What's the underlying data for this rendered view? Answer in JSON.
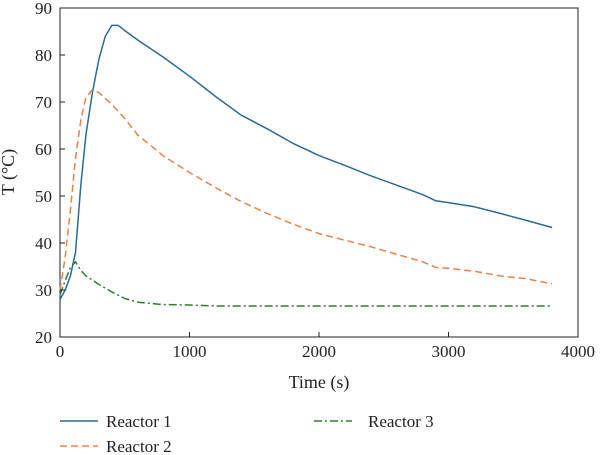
{
  "chart_data": {
    "type": "line",
    "title": "",
    "xlabel": "Time (s)",
    "ylabel": "T (°C)",
    "xlim": [
      0,
      4000
    ],
    "ylim": [
      20,
      90
    ],
    "xticks": [
      0,
      1000,
      2000,
      3000,
      4000
    ],
    "yticks": [
      20,
      30,
      40,
      50,
      60,
      70,
      80,
      90
    ],
    "grid": false,
    "legend_position": "below",
    "series": [
      {
        "name": "Reactor 1",
        "color": "#2a6a94",
        "style": "solid",
        "points": [
          [
            0,
            28
          ],
          [
            40,
            30
          ],
          [
            80,
            33
          ],
          [
            120,
            38
          ],
          [
            160,
            52
          ],
          [
            200,
            63
          ],
          [
            250,
            72
          ],
          [
            300,
            79
          ],
          [
            350,
            84
          ],
          [
            400,
            86.3
          ],
          [
            450,
            86.3
          ],
          [
            500,
            85.2
          ],
          [
            600,
            83.2
          ],
          [
            800,
            79.5
          ],
          [
            1000,
            75.5
          ],
          [
            1200,
            71.2
          ],
          [
            1400,
            67.2
          ],
          [
            1600,
            64.3
          ],
          [
            1800,
            61.2
          ],
          [
            2000,
            58.6
          ],
          [
            2200,
            56.5
          ],
          [
            2400,
            54.3
          ],
          [
            2600,
            52.3
          ],
          [
            2800,
            50.3
          ],
          [
            2900,
            49
          ],
          [
            3000,
            48.6
          ],
          [
            3200,
            47.7
          ],
          [
            3400,
            46.3
          ],
          [
            3600,
            44.8
          ],
          [
            3800,
            43.3
          ]
        ]
      },
      {
        "name": "Reactor 2",
        "color": "#e8834a",
        "style": "dashed",
        "points": [
          [
            0,
            30
          ],
          [
            40,
            37
          ],
          [
            80,
            47
          ],
          [
            120,
            58
          ],
          [
            160,
            66
          ],
          [
            200,
            71
          ],
          [
            250,
            72.6
          ],
          [
            300,
            72
          ],
          [
            400,
            69.5
          ],
          [
            500,
            66.5
          ],
          [
            600,
            63
          ],
          [
            800,
            58.5
          ],
          [
            1000,
            55
          ],
          [
            1200,
            51.8
          ],
          [
            1400,
            48.8
          ],
          [
            1600,
            46.3
          ],
          [
            1800,
            44
          ],
          [
            2000,
            42
          ],
          [
            2200,
            40.6
          ],
          [
            2400,
            39.2
          ],
          [
            2600,
            37.6
          ],
          [
            2800,
            36
          ],
          [
            2900,
            34.8
          ],
          [
            3000,
            34.6
          ],
          [
            3200,
            34
          ],
          [
            3400,
            33
          ],
          [
            3600,
            32.4
          ],
          [
            3800,
            31.3
          ]
        ]
      },
      {
        "name": "Reactor 3",
        "color": "#2e7d32",
        "style": "dashdot",
        "points": [
          [
            0,
            29
          ],
          [
            40,
            32
          ],
          [
            80,
            34.8
          ],
          [
            120,
            36
          ],
          [
            160,
            34.2
          ],
          [
            200,
            33
          ],
          [
            300,
            31.2
          ],
          [
            400,
            29.6
          ],
          [
            500,
            28.2
          ],
          [
            600,
            27.4
          ],
          [
            800,
            26.9
          ],
          [
            1000,
            26.8
          ],
          [
            1200,
            26.6
          ],
          [
            1500,
            26.6
          ],
          [
            2000,
            26.6
          ],
          [
            2500,
            26.6
          ],
          [
            3000,
            26.6
          ],
          [
            3500,
            26.6
          ],
          [
            3800,
            26.6
          ]
        ]
      }
    ]
  }
}
